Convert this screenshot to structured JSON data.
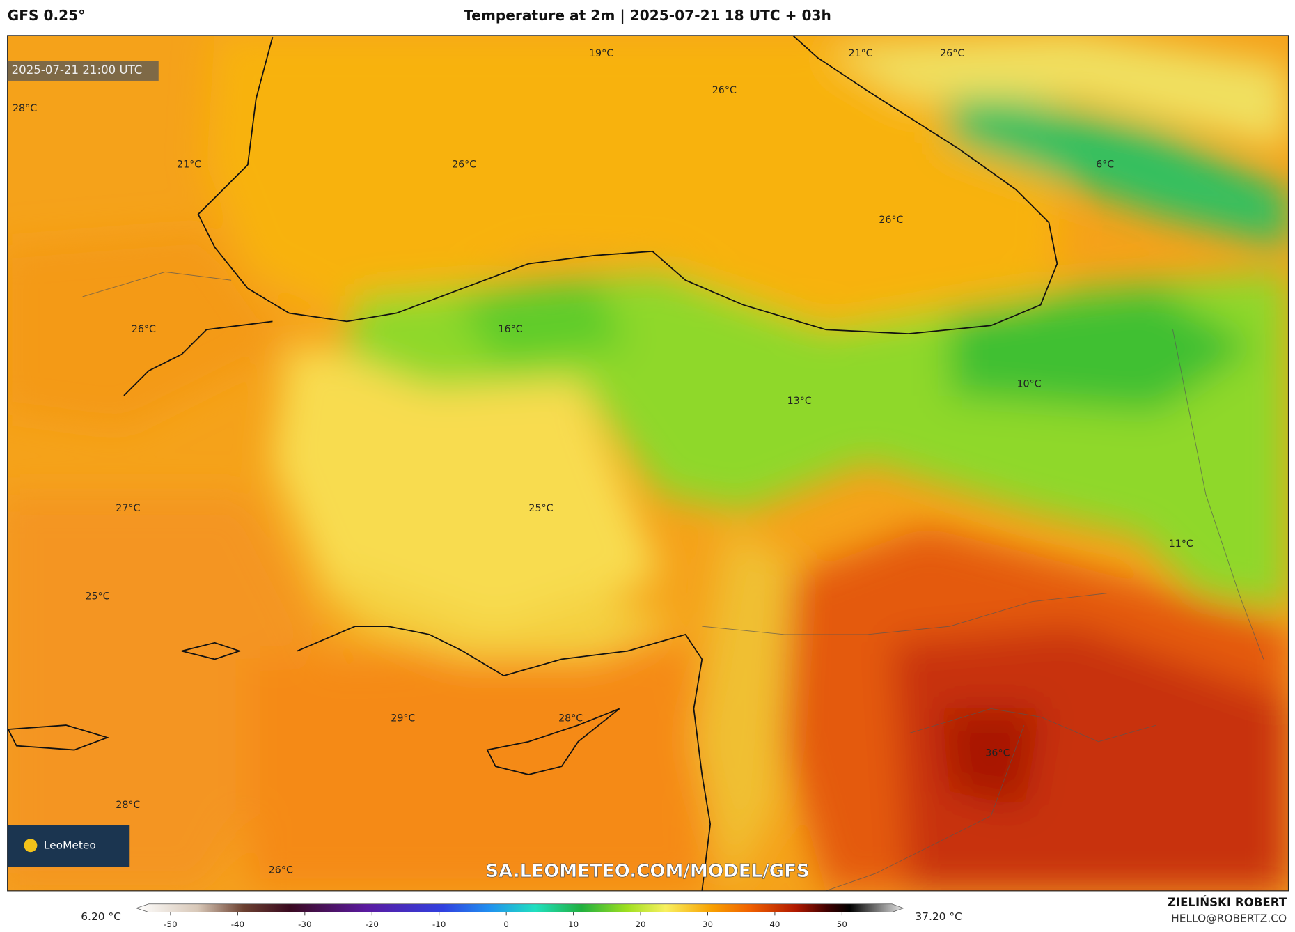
{
  "header": {
    "model": "GFS 0.25°",
    "title": "Temperature at 2m | 2025-07-21 18 UTC + 03h",
    "valid_time": "2025-07-21 21:00 UTC"
  },
  "temperature_labels": [
    "28°C",
    "21°C",
    "26°C",
    "19°C",
    "21°C",
    "26°C",
    "26°C",
    "6°C",
    "26°C",
    "26°C",
    "16°C",
    "10°C",
    "13°C",
    "25°C",
    "27°C",
    "11°C",
    "25°C",
    "29°C",
    "28°C",
    "36°C",
    "28°C",
    "26°C"
  ],
  "legend": {
    "min_label": "6.20 °C",
    "max_label": "37.20 °C",
    "ticks": [
      -50,
      -40,
      -30,
      -20,
      -10,
      0,
      10,
      20,
      30,
      40,
      50
    ]
  },
  "footer": {
    "logo": "LeoMeteo",
    "watermark": "SA.LEOMETEO.COM/MODEL/GFS",
    "author": "ZIELIŃSKI ROBERT",
    "email": "HELLO@ROBERTZ.CO"
  }
}
